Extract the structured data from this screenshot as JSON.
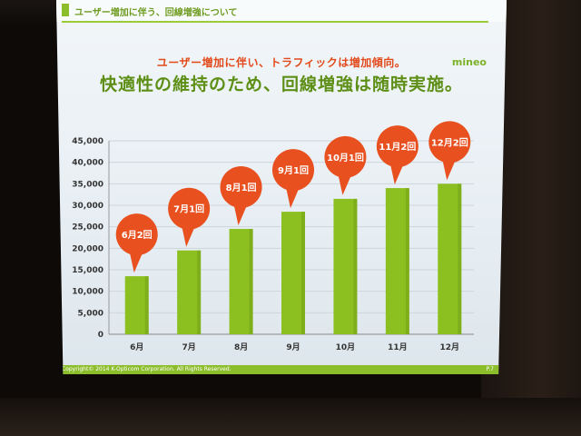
{
  "slide": {
    "section_title": "ユーザー増加に伴う、回線増強について",
    "headline_sub": "ユーザー増加に伴い、トラフィックは増加傾向。",
    "headline_main": "快適性の維持のため、回線増強は随時実施。",
    "logo": "mineo",
    "footer": "Copyright© 2014 K-Opticom Corporation. All Rights Reserved.",
    "page_number": "P.7"
  },
  "colors": {
    "bar": "#8cc021",
    "bar_dark": "#6f9d14",
    "bubble": "#e8501f",
    "accent": "#8cbd2b"
  },
  "chart_data": {
    "type": "bar",
    "categories": [
      "6月",
      "7月",
      "8月",
      "9月",
      "10月",
      "11月",
      "12月"
    ],
    "values": [
      13500,
      19500,
      24500,
      28500,
      31500,
      34000,
      35000
    ],
    "annotations": [
      "6月2回",
      "7月1回",
      "8月1回",
      "9月1回",
      "10月1回",
      "11月2回",
      "12月2回"
    ],
    "ylim": [
      0,
      45000
    ],
    "yticks": [
      "0",
      "5,000",
      "10,000",
      "15,000",
      "20,000",
      "25,000",
      "30,000",
      "35,000",
      "40,000",
      "45,000"
    ],
    "ytick_values": [
      0,
      5000,
      10000,
      15000,
      20000,
      25000,
      30000,
      35000,
      40000,
      45000
    ],
    "grid": true,
    "title": "",
    "xlabel": "",
    "ylabel": ""
  }
}
